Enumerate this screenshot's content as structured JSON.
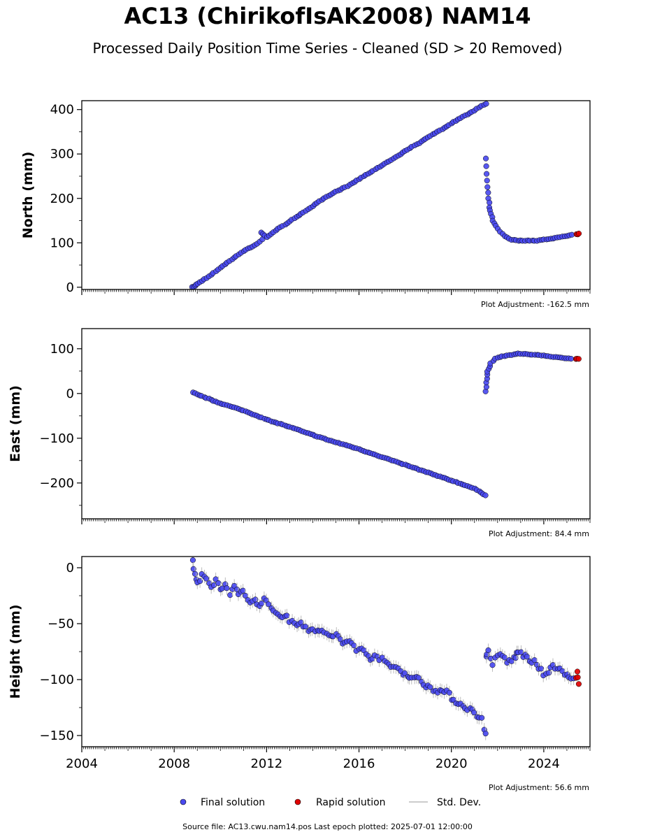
{
  "title": "AC13 (ChirikofIsAK2008) NAM14",
  "subtitle": "Processed Daily Position Time Series - Cleaned (SD > 20 Removed)",
  "footer": "Source file: AC13.cwu.nam14.pos  Last epoch plotted: 2025-07-01 12:00:00",
  "colors": {
    "final": "#4a4af0",
    "rapid": "#e00000",
    "stddev": "#bbbbbb",
    "marker_edge": "#000000"
  },
  "chart_data": [
    {
      "type": "scatter",
      "ylabel": "North (mm)",
      "adjustment": "Plot Adjustment: -162.5 mm",
      "xlim": [
        2004,
        2026
      ],
      "ylim": [
        -5,
        420
      ],
      "yticks": [
        0,
        100,
        200,
        300,
        400
      ],
      "ytick_labels": [
        "0",
        "100",
        "200",
        "300",
        "400"
      ],
      "xticks": [
        2004,
        2008,
        2012,
        2016,
        2020,
        2024
      ],
      "show_xtick_labels": false,
      "grid": false,
      "series": [
        {
          "name": "Final solution",
          "x": [
            2008.8,
            2008.9,
            2009.0,
            2009.3,
            2009.6,
            2009.9,
            2010.2,
            2010.5,
            2010.8,
            2011.0,
            2011.4,
            2011.6,
            2011.8,
            2011.75,
            2012.0,
            2012.3,
            2012.6,
            2013.0,
            2013.4,
            2013.8,
            2014.2,
            2014.6,
            2015.0,
            2015.4,
            2015.8,
            2016.2,
            2016.6,
            2017.0,
            2017.4,
            2017.8,
            2018.2,
            2018.6,
            2019.0,
            2019.4,
            2019.8,
            2020.2,
            2020.6,
            2021.0,
            2021.3,
            2021.5,
            2021.5,
            2021.52,
            2021.55,
            2021.6,
            2021.65,
            2021.7,
            2021.8,
            2021.9,
            2022.1,
            2022.3,
            2022.6,
            2022.9,
            2023.7,
            2023.9,
            2024.2,
            2024.6,
            2024.9,
            2025.2
          ],
          "y": [
            0,
            3,
            8,
            18,
            28,
            40,
            52,
            63,
            74,
            82,
            92,
            98,
            108,
            123,
            113,
            124,
            135,
            148,
            162,
            176,
            190,
            203,
            215,
            225,
            237,
            250,
            262,
            275,
            287,
            300,
            313,
            325,
            338,
            350,
            362,
            375,
            387,
            398,
            408,
            413,
            290,
            255,
            225,
            200,
            180,
            165,
            150,
            138,
            125,
            115,
            107,
            105,
            105,
            107,
            108,
            112,
            115,
            118
          ]
        },
        {
          "name": "Rapid solution",
          "x": [
            2025.4,
            2025.45,
            2025.5
          ],
          "y": [
            120,
            119,
            121
          ]
        }
      ]
    },
    {
      "type": "scatter",
      "ylabel": "East (mm)",
      "adjustment": "Plot Adjustment: 84.4 mm",
      "xlim": [
        2004,
        2026
      ],
      "ylim": [
        -280,
        145
      ],
      "yticks": [
        -200,
        -100,
        0,
        100
      ],
      "ytick_labels": [
        "−200",
        "−100",
        "0",
        "100"
      ],
      "xticks": [
        2004,
        2008,
        2012,
        2016,
        2020,
        2024
      ],
      "show_xtick_labels": false,
      "grid": false,
      "series": [
        {
          "name": "Final solution",
          "x": [
            2008.8,
            2009.0,
            2009.3,
            2009.6,
            2009.9,
            2010.2,
            2010.5,
            2010.8,
            2011.1,
            2011.3,
            2011.6,
            2011.9,
            2012.2,
            2012.6,
            2013.0,
            2013.4,
            2013.8,
            2014.2,
            2014.6,
            2015.0,
            2015.4,
            2015.8,
            2016.2,
            2016.6,
            2017.0,
            2017.4,
            2017.8,
            2018.2,
            2018.6,
            2019.0,
            2019.4,
            2019.8,
            2020.2,
            2020.6,
            2021.0,
            2021.3,
            2021.5,
            2021.5,
            2021.52,
            2021.55,
            2021.6,
            2021.7,
            2021.9,
            2022.1,
            2022.4,
            2022.7,
            2022.9,
            2023.8,
            2024.1,
            2024.4,
            2024.7,
            2025.0,
            2025.2
          ],
          "y": [
            2,
            -2,
            -8,
            -14,
            -20,
            -25,
            -30,
            -35,
            -40,
            -44,
            -50,
            -56,
            -62,
            -68,
            -75,
            -82,
            -89,
            -96,
            -103,
            -109,
            -115,
            -121,
            -128,
            -135,
            -142,
            -149,
            -156,
            -163,
            -170,
            -177,
            -184,
            -191,
            -198,
            -205,
            -213,
            -222,
            -228,
            5,
            25,
            42,
            55,
            68,
            78,
            82,
            85,
            87,
            89,
            86,
            84,
            82,
            80,
            79,
            78
          ]
        },
        {
          "name": "Rapid solution",
          "x": [
            2025.4,
            2025.45,
            2025.5
          ],
          "y": [
            77,
            78,
            77
          ]
        }
      ]
    },
    {
      "type": "scatter",
      "ylabel": "Height (mm)",
      "adjustment": "Plot Adjustment: 56.6 mm",
      "xlim": [
        2004,
        2026
      ],
      "ylim": [
        -160,
        10
      ],
      "yticks": [
        -150,
        -100,
        -50,
        0
      ],
      "ytick_labels": [
        "−150",
        "−100",
        "−50",
        "0"
      ],
      "xticks": [
        2004,
        2008,
        2012,
        2016,
        2020,
        2024
      ],
      "xtick_labels": [
        "2004",
        "2008",
        "2012",
        "2016",
        "2020",
        "2024"
      ],
      "show_xtick_labels": true,
      "grid": false,
      "series": [
        {
          "name": "Final solution",
          "x": [
            2008.8,
            2008.9,
            2009.0,
            2009.2,
            2009.4,
            2009.6,
            2009.8,
            2010.0,
            2010.2,
            2010.4,
            2010.6,
            2010.8,
            2011.0,
            2011.2,
            2011.5,
            2011.7,
            2011.9,
            2012.1,
            2012.3,
            2012.6,
            2012.9,
            2013.2,
            2013.5,
            2013.8,
            2014.1,
            2014.4,
            2014.7,
            2015.0,
            2015.3,
            2015.6,
            2015.9,
            2016.2,
            2016.5,
            2016.8,
            2017.1,
            2017.4,
            2017.7,
            2018.0,
            2018.3,
            2018.6,
            2018.9,
            2019.2,
            2019.5,
            2019.8,
            2020.1,
            2020.4,
            2020.7,
            2021.0,
            2021.3,
            2021.5,
            2021.5,
            2021.6,
            2021.8,
            2022.0,
            2022.2,
            2022.4,
            2022.6,
            2022.8,
            2022.9,
            2023.6,
            2023.8,
            2024.0,
            2024.5,
            2024.7,
            2024.9,
            2025.1,
            2025.3
          ],
          "y": [
            5,
            -5,
            -15,
            -8,
            -12,
            -18,
            -10,
            -20,
            -15,
            -22,
            -18,
            -25,
            -20,
            -28,
            -30,
            -35,
            -25,
            -35,
            -38,
            -42,
            -45,
            -50,
            -48,
            -55,
            -58,
            -55,
            -62,
            -60,
            -68,
            -65,
            -72,
            -75,
            -80,
            -78,
            -85,
            -88,
            -90,
            -95,
            -98,
            -100,
            -105,
            -108,
            -110,
            -112,
            -118,
            -122,
            -125,
            -130,
            -135,
            -150,
            -80,
            -75,
            -85,
            -80,
            -78,
            -85,
            -82,
            -80,
            -75,
            -85,
            -90,
            -95,
            -88,
            -92,
            -95,
            -98,
            -100
          ]
        },
        {
          "name": "Rapid solution",
          "x": [
            2025.4,
            2025.45,
            2025.5,
            2025.45
          ],
          "y": [
            -96,
            -100,
            -104,
            -93
          ]
        }
      ]
    }
  ],
  "legend": {
    "placement": "bottom-center",
    "items": [
      {
        "label": "Final solution",
        "kind": "marker",
        "color": "#4a4af0"
      },
      {
        "label": "Rapid solution",
        "kind": "marker",
        "color": "#e00000"
      },
      {
        "label": "Std. Dev.",
        "kind": "line",
        "color": "#bbbbbb"
      }
    ]
  }
}
